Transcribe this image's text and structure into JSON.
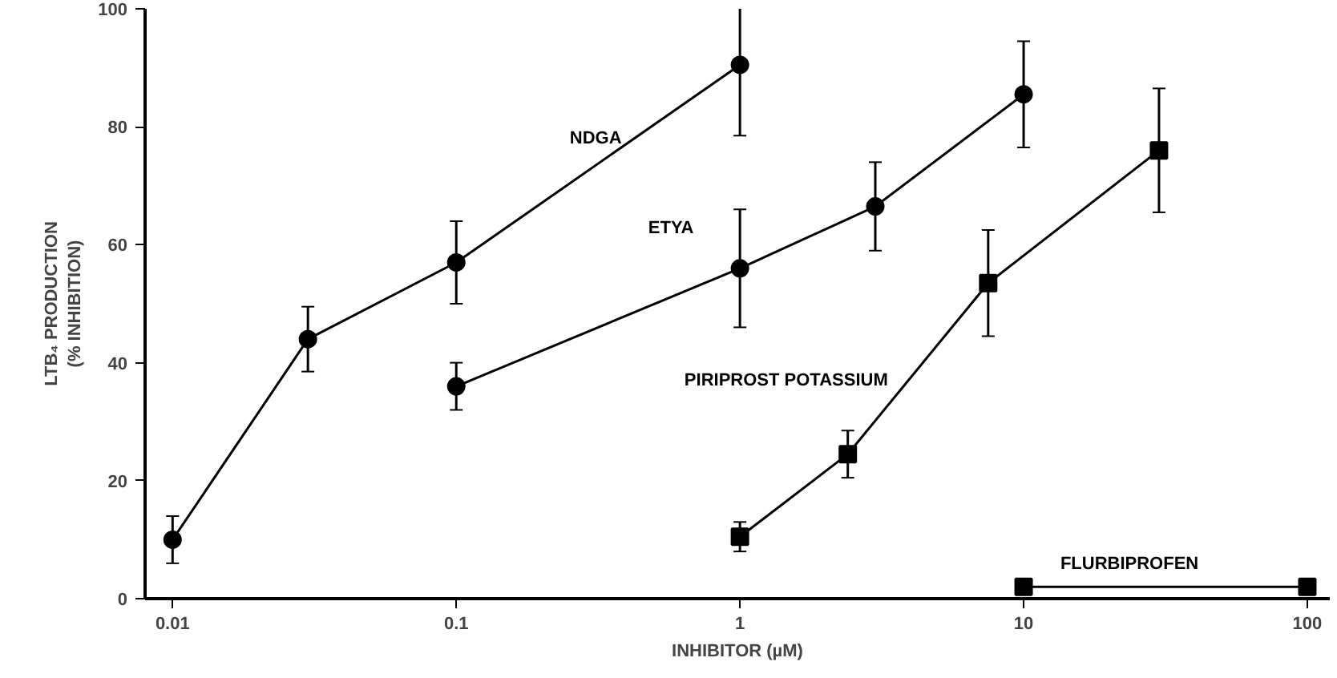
{
  "chart_data": {
    "type": "line",
    "xlabel": "INHIBITOR (µM)",
    "ylabel": "LTB₄ PRODUCTION\n(% INHIBITION)",
    "log": "x",
    "xlim": [
      0.008,
      120
    ],
    "ylim": [
      0,
      100
    ],
    "xticks": [
      {
        "value": 0.01,
        "label": "0.01"
      },
      {
        "value": 0.1,
        "label": "0.1"
      },
      1,
      10,
      100
    ],
    "yticks": [
      0,
      20,
      40,
      60,
      80,
      100
    ],
    "grid": false,
    "line_style": "solid",
    "series": [
      {
        "name": "NDGA",
        "color": "#000000",
        "marker": "circle",
        "x": [
          0.01,
          0.03,
          0.1,
          1
        ],
        "values": [
          10,
          44,
          57,
          90.5
        ],
        "errors": [
          4,
          5.5,
          7,
          12
        ]
      },
      {
        "name": "ETYA",
        "color": "#000000",
        "marker": "circle",
        "x": [
          0.1,
          1,
          3,
          10
        ],
        "values": [
          36,
          56,
          66.5,
          85.5
        ],
        "errors": [
          4,
          10,
          7.5,
          9
        ]
      },
      {
        "name": "PIRIPROST POTASSIUM",
        "color": "#000000",
        "marker": "square",
        "x": [
          1,
          2.4,
          7.5,
          30
        ],
        "values": [
          10.5,
          24.5,
          53.5,
          76
        ],
        "errors": [
          2.5,
          4,
          9,
          10.5
        ]
      },
      {
        "name": "FLURBIPROFEN",
        "color": "#000000",
        "marker": "square",
        "x": [
          10,
          100
        ],
        "values": [
          2,
          2
        ]
      }
    ]
  }
}
